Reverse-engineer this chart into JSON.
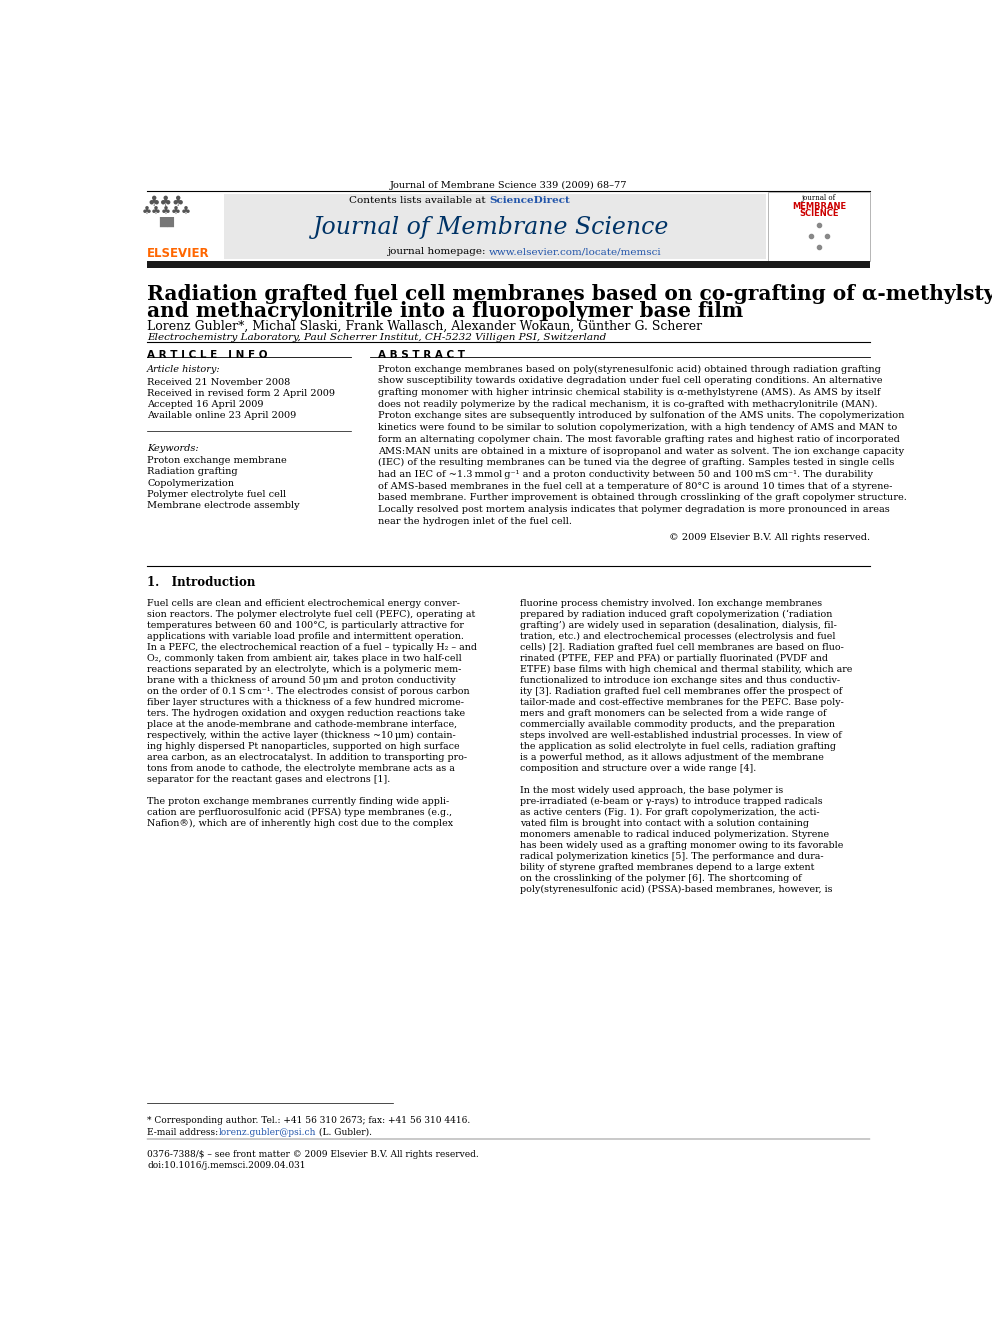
{
  "page_width": 9.92,
  "page_height": 13.23,
  "background_color": "#ffffff",
  "journal_citation": "Journal of Membrane Science 339 (2009) 68–77",
  "sciencedirect_text": "ScienceDirect",
  "journal_title": "Journal of Membrane Science",
  "paper_title_line1": "Radiation grafted fuel cell membranes based on co-grafting of α-methylstyrene",
  "paper_title_line2": "and methacrylonitrile into a fluoropolymer base film",
  "authors": "Lorenz Gubler*, Michal Slaski, Frank Wallasch, Alexander Wokaun, Günther G. Scherer",
  "affiliation": "Electrochemistry Laboratory, Paul Scherrer Institut, CH-5232 Villigen PSI, Switzerland",
  "article_info_header": "A R T I C L E   I N F O",
  "abstract_header": "A B S T R A C T",
  "article_history_header": "Article history:",
  "received1": "Received 21 November 2008",
  "received2": "Received in revised form 2 April 2009",
  "accepted": "Accepted 16 April 2009",
  "available": "Available online 23 April 2009",
  "keywords_header": "Keywords:",
  "keywords": [
    "Proton exchange membrane",
    "Radiation grafting",
    "Copolymerization",
    "Polymer electrolyte fuel cell",
    "Membrane electrode assembly"
  ],
  "copyright": "© 2009 Elsevier B.V. All rights reserved.",
  "intro_header": "1.   Introduction",
  "footnote_line1": "* Corresponding author. Tel.: +41 56 310 2673; fax: +41 56 310 4416.",
  "footnote_email_prefix": "E-mail address: ",
  "footnote_email": "lorenz.gubler@psi.ch",
  "footnote_email_suffix": " (L. Gubler).",
  "footer_left": "0376-7388/$ – see front matter © 2009 Elsevier B.V. All rights reserved.",
  "footer_doi": "doi:10.1016/j.memsci.2009.04.031",
  "elsevier_color": "#FF6600",
  "sciencedirect_color": "#2255AA",
  "homepage_link_color": "#2255AA",
  "journal_title_color": "#003366",
  "header_box_color": "#E8E8E8",
  "black_bar_color": "#1A1A1A",
  "abstract_lines": [
    "Proton exchange membranes based on poly(styrenesulfonic acid) obtained through radiation grafting",
    "show susceptibility towards oxidative degradation under fuel cell operating conditions. An alternative",
    "grafting monomer with higher intrinsic chemical stability is α-methylstyrene (AMS). As AMS by itself",
    "does not readily polymerize by the radical mechanism, it is co-grafted with methacrylonitrile (MAN).",
    "Proton exchange sites are subsequently introduced by sulfonation of the AMS units. The copolymerization",
    "kinetics were found to be similar to solution copolymerization, with a high tendency of AMS and MAN to",
    "form an alternating copolymer chain. The most favorable grafting rates and highest ratio of incorporated",
    "AMS:MAN units are obtained in a mixture of isopropanol and water as solvent. The ion exchange capacity",
    "(IEC) of the resulting membranes can be tuned via the degree of grafting. Samples tested in single cells",
    "had an IEC of ~1.3 mmol g⁻¹ and a proton conductivity between 50 and 100 mS cm⁻¹. The durability",
    "of AMS-based membranes in the fuel cell at a temperature of 80°C is around 10 times that of a styrene-",
    "based membrane. Further improvement is obtained through crosslinking of the graft copolymer structure.",
    "Locally resolved post mortem analysis indicates that polymer degradation is more pronounced in areas",
    "near the hydrogen inlet of the fuel cell."
  ],
  "col1_lines": [
    "Fuel cells are clean and efficient electrochemical energy conver-",
    "sion reactors. The polymer electrolyte fuel cell (PEFC), operating at",
    "temperatures between 60 and 100°C, is particularly attractive for",
    "applications with variable load profile and intermittent operation.",
    "In a PEFC, the electrochemical reaction of a fuel – typically H₂ – and",
    "O₂, commonly taken from ambient air, takes place in two half-cell",
    "reactions separated by an electrolyte, which is a polymeric mem-",
    "brane with a thickness of around 50 μm and proton conductivity",
    "on the order of 0.1 S cm⁻¹. The electrodes consist of porous carbon",
    "fiber layer structures with a thickness of a few hundred microme-",
    "ters. The hydrogen oxidation and oxygen reduction reactions take",
    "place at the anode-membrane and cathode-membrane interface,",
    "respectively, within the active layer (thickness ~10 μm) contain-",
    "ing highly dispersed Pt nanoparticles, supported on high surface",
    "area carbon, as an electrocatalyst. In addition to transporting pro-",
    "tons from anode to cathode, the electrolyte membrane acts as a",
    "separator for the reactant gases and electrons [1].",
    "",
    "The proton exchange membranes currently finding wide appli-",
    "cation are perfluorosulfonic acid (PFSA) type membranes (e.g.,",
    "Nafion®), which are of inherently high cost due to the complex"
  ],
  "col2_lines": [
    "fluorine process chemistry involved. Ion exchange membranes",
    "prepared by radiation induced graft copolymerization (‘radiation",
    "grafting’) are widely used in separation (desalination, dialysis, fil-",
    "tration, etc.) and electrochemical processes (electrolysis and fuel",
    "cells) [2]. Radiation grafted fuel cell membranes are based on fluo-",
    "rinated (PTFE, FEP and PFA) or partially fluorinated (PVDF and",
    "ETFE) base films with high chemical and thermal stability, which are",
    "functionalized to introduce ion exchange sites and thus conductiv-",
    "ity [3]. Radiation grafted fuel cell membranes offer the prospect of",
    "tailor-made and cost-effective membranes for the PEFC. Base poly-",
    "mers and graft monomers can be selected from a wide range of",
    "commercially available commodity products, and the preparation",
    "steps involved are well-established industrial processes. In view of",
    "the application as solid electrolyte in fuel cells, radiation grafting",
    "is a powerful method, as it allows adjustment of the membrane",
    "composition and structure over a wide range [4].",
    "",
    "In the most widely used approach, the base polymer is",
    "pre-irradiated (e-beam or γ-rays) to introduce trapped radicals",
    "as active centers (Fig. 1). For graft copolymerization, the acti-",
    "vated film is brought into contact with a solution containing",
    "monomers amenable to radical induced polymerization. Styrene",
    "has been widely used as a grafting monomer owing to its favorable",
    "radical polymerization kinetics [5]. The performance and dura-",
    "bility of styrene grafted membranes depend to a large extent",
    "on the crosslinking of the polymer [6]. The shortcoming of",
    "poly(styrenesulfonic acid) (PSSA)-based membranes, however, is"
  ]
}
